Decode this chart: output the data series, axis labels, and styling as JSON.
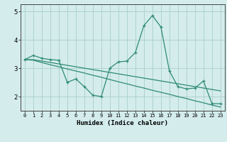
{
  "xlabel": "Humidex (Indice chaleur)",
  "x_values": [
    0,
    1,
    2,
    3,
    4,
    5,
    6,
    7,
    8,
    9,
    10,
    11,
    12,
    13,
    14,
    15,
    16,
    17,
    18,
    19,
    20,
    21,
    22,
    23
  ],
  "line1_y": [
    3.3,
    3.45,
    3.35,
    3.3,
    3.28,
    2.5,
    2.62,
    2.35,
    2.05,
    2.0,
    3.0,
    3.22,
    3.25,
    3.55,
    4.5,
    4.85,
    4.45,
    2.9,
    2.35,
    2.27,
    2.3,
    2.55,
    1.75,
    1.75
  ],
  "line2_y": [
    3.3,
    3.3,
    3.25,
    3.2,
    3.15,
    3.1,
    3.05,
    3.0,
    2.95,
    2.9,
    2.85,
    2.8,
    2.75,
    2.7,
    2.65,
    2.6,
    2.55,
    2.5,
    2.45,
    2.4,
    2.35,
    2.3,
    2.25,
    2.2
  ],
  "line3_y": [
    3.3,
    3.28,
    3.2,
    3.12,
    3.05,
    2.97,
    2.9,
    2.83,
    2.75,
    2.68,
    2.6,
    2.52,
    2.45,
    2.37,
    2.3,
    2.22,
    2.15,
    2.08,
    2.0,
    1.93,
    1.85,
    1.78,
    1.7,
    1.63
  ],
  "line_color": "#2e8b74",
  "bg_color": "#d4ecec",
  "grid_color": "#aacece",
  "ylim": [
    1.5,
    5.25
  ],
  "yticks": [
    2,
    3,
    4,
    5
  ],
  "xlim": [
    -0.5,
    23.5
  ]
}
